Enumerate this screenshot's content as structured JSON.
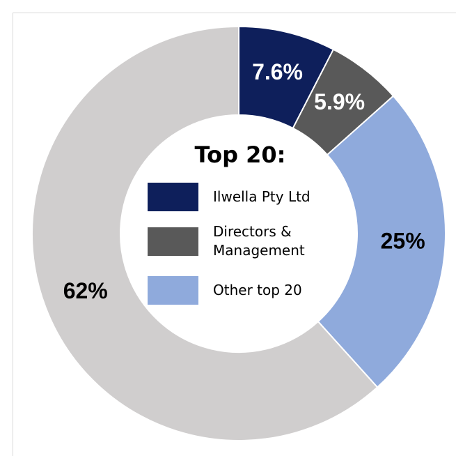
{
  "chart_data": {
    "type": "donut",
    "title": "Top 20:",
    "categories": [
      "Ilwella Pty Ltd",
      "Directors & Management",
      "Other top 20",
      null
    ],
    "values": [
      7.6,
      5.9,
      25,
      62
    ],
    "value_labels": [
      "7.6%",
      "5.9%",
      "25%",
      "62%"
    ],
    "colors": [
      "#0e1f5b",
      "#595959",
      "#8faadc",
      "#d0cece"
    ]
  }
}
